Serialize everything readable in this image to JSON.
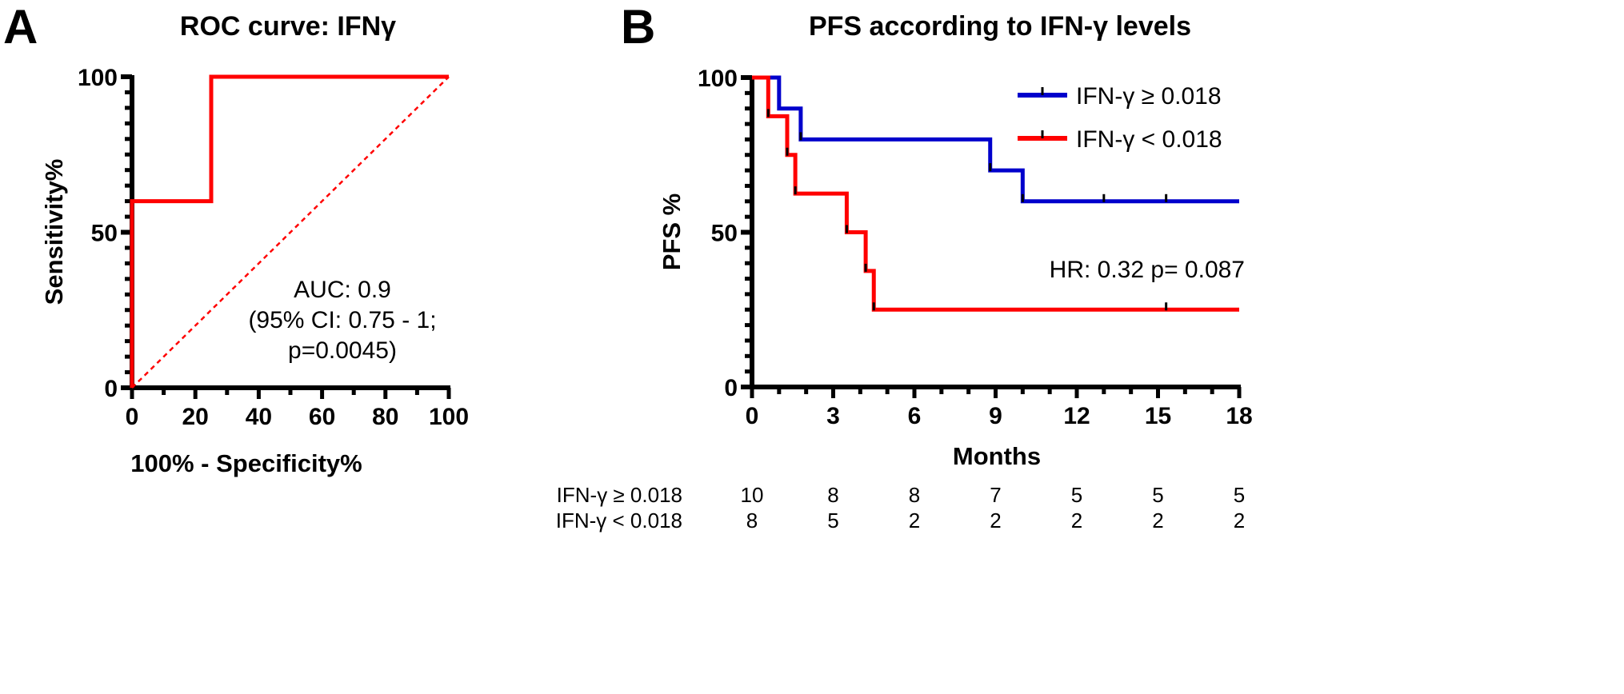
{
  "panels": [
    {
      "letter": "A",
      "chart_data": {
        "type": "line",
        "title": "ROC curve: IFNγ",
        "xlabel": "100% - Specificity%",
        "ylabel": "Sensitivity%",
        "xlim": [
          0,
          100
        ],
        "ylim": [
          0,
          100
        ],
        "xticks": [
          0,
          20,
          40,
          60,
          80,
          100
        ],
        "yticks": [
          0,
          50,
          100
        ],
        "series": [
          {
            "name": "ROC curve",
            "color": "#ff0000",
            "style": "solid",
            "x": [
              0,
              0,
              25,
              25,
              100
            ],
            "y": [
              0,
              60,
              60,
              100,
              100
            ]
          },
          {
            "name": "Reference line",
            "color": "#ff0000",
            "style": "dashed",
            "x": [
              0,
              100
            ],
            "y": [
              0,
              100
            ]
          }
        ],
        "annotations": [
          "AUC: 0.9",
          "(95% CI: 0.75 - 1;",
          "p=0.0045)"
        ]
      }
    },
    {
      "letter": "B",
      "chart_data": {
        "type": "line",
        "title": "PFS according to IFN-γ levels",
        "xlabel": "Months",
        "ylabel": "PFS %",
        "xlim": [
          0,
          18
        ],
        "ylim": [
          0,
          100
        ],
        "xticks": [
          0,
          3,
          6,
          9,
          12,
          15,
          18
        ],
        "yticks": [
          0,
          50,
          100
        ],
        "legend_position": "top-right",
        "series": [
          {
            "name": "IFN-γ ≥ 0.018",
            "color": "#0000cc",
            "x": [
              0,
              1,
              1,
              1.8,
              1.8,
              8.8,
              8.8,
              10,
              10,
              18
            ],
            "y": [
              100,
              100,
              90,
              90,
              80,
              80,
              70,
              70,
              60,
              60
            ],
            "censored_x": [
              1.8,
              8.8,
              10,
              13,
              15.3
            ]
          },
          {
            "name": "IFN-γ < 0.018",
            "color": "#ff0000",
            "x": [
              0,
              0.6,
              0.6,
              1.3,
              1.3,
              1.6,
              1.6,
              3.5,
              3.5,
              4.2,
              4.2,
              4.5,
              4.5,
              18
            ],
            "y": [
              100,
              100,
              87.5,
              87.5,
              75,
              75,
              62.5,
              62.5,
              50,
              50,
              37.5,
              37.5,
              25,
              25
            ],
            "censored_x": [
              0.6,
              1.3,
              1.6,
              3.5,
              4.2,
              4.5,
              15.3
            ]
          }
        ],
        "annotations": [
          "HR: 0.32  p= 0.087"
        ],
        "risk_table": {
          "time_points": [
            0,
            3,
            6,
            9,
            12,
            15,
            18
          ],
          "rows": [
            {
              "label": "IFN-γ ≥ 0.018",
              "values": [
                "10",
                "8",
                "8",
                "7",
                "5",
                "5",
                "5"
              ]
            },
            {
              "label": "IFN-γ < 0.018",
              "values": [
                "8",
                "5",
                "2",
                "2",
                "2",
                "2",
                "2"
              ]
            }
          ]
        }
      }
    }
  ]
}
